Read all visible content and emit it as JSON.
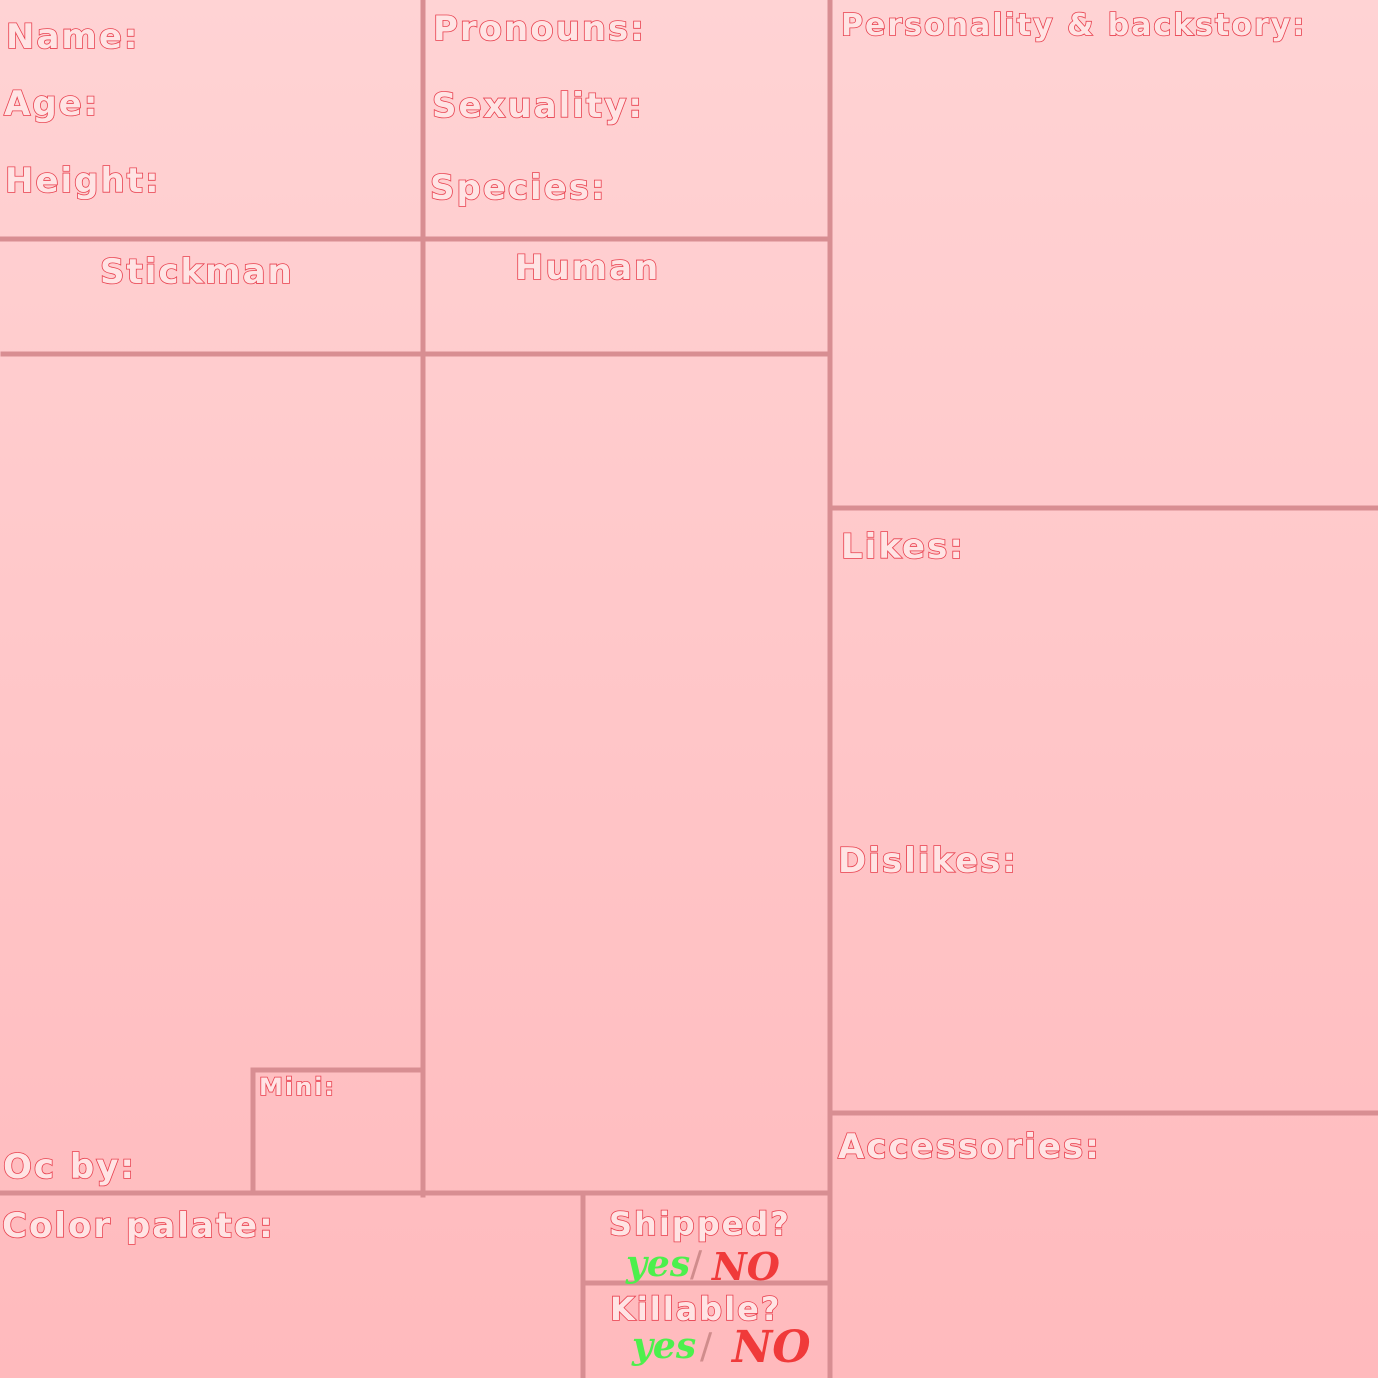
{
  "sections": {
    "name": "Name:",
    "age": "Age:",
    "height": "Height:",
    "pronouns": "Pronouns:",
    "sexuality": "Sexuality:",
    "species": "Species:",
    "personality": "Personality & backstory:",
    "stickman": "Stickman",
    "human": "Human",
    "likes": "Likes:",
    "dislikes": "Dislikes:",
    "mini": "Mini:",
    "oc_by": "Oc by:",
    "accessories": "Accessories:",
    "color_palette": "Color palate:",
    "shipped": {
      "label": "Shipped?",
      "yes": "yes",
      "separator": "/",
      "no": "NO"
    },
    "killable": {
      "label": "Killable?",
      "yes": "yes",
      "separator": "/",
      "no": "NO"
    }
  }
}
